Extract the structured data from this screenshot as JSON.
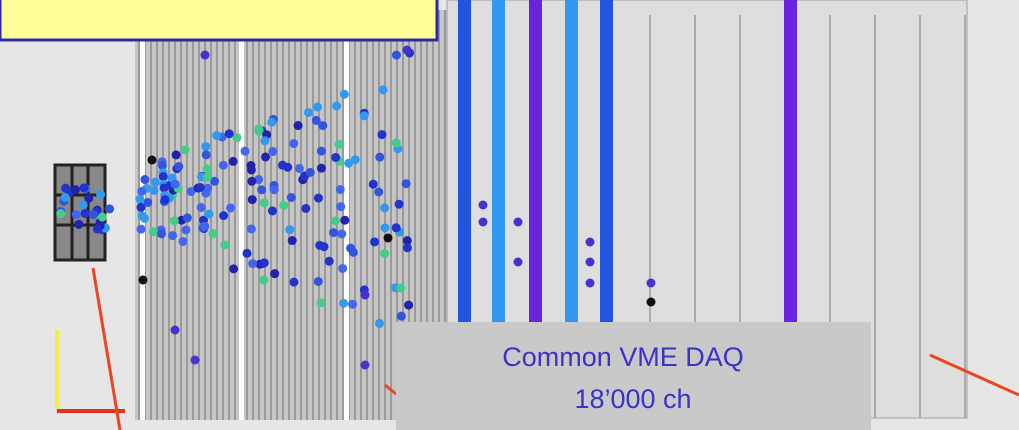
{
  "annotation": {
    "lines": [
      "Common VME DAQ",
      "18’000 ch"
    ]
  }
}
